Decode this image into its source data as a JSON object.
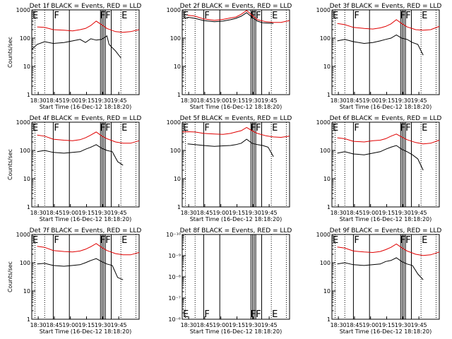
{
  "chart_data": [
    {
      "type": "line",
      "title": "Det 1f BLACK = Events, RED = LLD",
      "xlabel": "Start Time (16-Dec-12 18:18:20)",
      "ylabel": "Counts/sec",
      "yscale": "log",
      "ylim": [
        1,
        1000
      ],
      "ytick_labels": [
        "1",
        "10",
        "100",
        "1000"
      ],
      "xtick_labels": [
        "18:30",
        "18:45",
        "19:00",
        "19:15",
        "19:30",
        "19:45"
      ],
      "flags": [
        "E",
        "F",
        "FF",
        "E"
      ],
      "series": [
        {
          "name": "BLACK",
          "color": "#000000",
          "x": [
            0,
            0.05,
            0.12,
            0.2,
            0.3,
            0.38,
            0.45,
            0.5,
            0.55,
            0.6,
            0.65,
            0.7,
            0.72,
            0.78,
            0.83
          ],
          "y": [
            40,
            60,
            75,
            65,
            70,
            80,
            90,
            70,
            95,
            85,
            90,
            120,
            60,
            35,
            20
          ]
        },
        {
          "name": "RED",
          "color": "#e00000",
          "x": [
            0.05,
            0.12,
            0.2,
            0.3,
            0.38,
            0.45,
            0.5,
            0.55,
            0.6,
            0.65,
            0.7,
            0.78,
            0.85,
            0.92,
            1.0
          ],
          "y": [
            250,
            240,
            200,
            190,
            180,
            200,
            220,
            280,
            400,
            300,
            220,
            170,
            160,
            170,
            200
          ]
        }
      ]
    },
    {
      "type": "line",
      "title": "Det 2f BLACK = Events, RED = LLD",
      "xlabel": "Start Time (16-Dec-12 18:18:20)",
      "ylabel": "",
      "yscale": "log",
      "ylim": [
        1,
        1000
      ],
      "ytick_labels": [
        "1",
        "10",
        "100",
        "1000"
      ],
      "xtick_labels": [
        "18:30",
        "18:45",
        "19:00",
        "19:15",
        "19:30",
        "19:45"
      ],
      "flags": [
        "E",
        "F",
        "FF",
        "E"
      ],
      "series": [
        {
          "name": "BLACK",
          "color": "#000000",
          "x": [
            0.05,
            0.12,
            0.2,
            0.3,
            0.38,
            0.45,
            0.5,
            0.55,
            0.6,
            0.65,
            0.7,
            0.75,
            0.8,
            0.85
          ],
          "y": [
            550,
            500,
            420,
            380,
            400,
            450,
            500,
            600,
            800,
            550,
            400,
            350,
            340,
            330
          ]
        },
        {
          "name": "RED",
          "color": "#e00000",
          "x": [
            0.05,
            0.12,
            0.2,
            0.3,
            0.38,
            0.45,
            0.5,
            0.55,
            0.6,
            0.65,
            0.7,
            0.78,
            0.85,
            0.92,
            1.0
          ],
          "y": [
            650,
            600,
            480,
            430,
            460,
            520,
            560,
            700,
            950,
            650,
            450,
            380,
            360,
            360,
            420
          ]
        }
      ]
    },
    {
      "type": "line",
      "title": "Det 3f BLACK = Events, RED = LLD",
      "xlabel": "Start Time (16-Dec-12 18:18:20)",
      "ylabel": "",
      "yscale": "log",
      "ylim": [
        1,
        1000
      ],
      "ytick_labels": [
        "1",
        "10",
        "100",
        "1000"
      ],
      "xtick_labels": [
        "18:30",
        "18:45",
        "19:00",
        "19:15",
        "19:30",
        "19:45"
      ],
      "flags": [
        "E",
        "F",
        "FF",
        "E"
      ],
      "series": [
        {
          "name": "BLACK",
          "color": "#000000",
          "x": [
            0.05,
            0.12,
            0.2,
            0.3,
            0.38,
            0.45,
            0.5,
            0.55,
            0.6,
            0.65,
            0.7,
            0.75,
            0.8,
            0.85
          ],
          "y": [
            80,
            90,
            75,
            65,
            70,
            80,
            90,
            100,
            130,
            100,
            90,
            70,
            60,
            25
          ]
        },
        {
          "name": "RED",
          "color": "#e00000",
          "x": [
            0.05,
            0.12,
            0.2,
            0.3,
            0.38,
            0.45,
            0.5,
            0.55,
            0.6,
            0.65,
            0.7,
            0.78,
            0.85,
            0.92,
            1.0
          ],
          "y": [
            330,
            300,
            240,
            220,
            210,
            230,
            260,
            320,
            450,
            330,
            250,
            200,
            190,
            200,
            260
          ]
        }
      ]
    },
    {
      "type": "line",
      "title": "Det 4f BLACK = Events, RED = LLD",
      "xlabel": "Start Time (16-Dec-12 18:18:20)",
      "ylabel": "Counts/sec",
      "yscale": "log",
      "ylim": [
        1,
        1000
      ],
      "ytick_labels": [
        "1",
        "10",
        "100",
        "1000"
      ],
      "xtick_labels": [
        "18:30",
        "18:45",
        "19:00",
        "19:15",
        "19:30",
        "19:45"
      ],
      "flags": [
        "E",
        "F",
        "FF",
        "E"
      ],
      "series": [
        {
          "name": "BLACK",
          "color": "#000000",
          "x": [
            0.05,
            0.12,
            0.2,
            0.3,
            0.38,
            0.45,
            0.5,
            0.55,
            0.6,
            0.65,
            0.7,
            0.75,
            0.8,
            0.85
          ],
          "y": [
            90,
            100,
            85,
            80,
            85,
            90,
            110,
            130,
            160,
            120,
            100,
            90,
            40,
            30
          ]
        },
        {
          "name": "RED",
          "color": "#e00000",
          "x": [
            0.05,
            0.12,
            0.2,
            0.3,
            0.38,
            0.45,
            0.5,
            0.55,
            0.6,
            0.65,
            0.7,
            0.78,
            0.85,
            0.92,
            1.0
          ],
          "y": [
            350,
            320,
            250,
            230,
            220,
            240,
            280,
            350,
            450,
            330,
            260,
            200,
            180,
            180,
            220
          ]
        }
      ]
    },
    {
      "type": "line",
      "title": "Det 5f BLACK = Events, RED = LLD",
      "xlabel": "Start Time (16-Dec-12 18:18:20)",
      "ylabel": "",
      "yscale": "log",
      "ylim": [
        1,
        1000
      ],
      "ytick_labels": [
        "1",
        "10",
        "100",
        "1000"
      ],
      "xtick_labels": [
        "18:30",
        "18:45",
        "19:00",
        "19:15",
        "19:30",
        "19:45"
      ],
      "flags": [
        "E",
        "F",
        "FF",
        "E"
      ],
      "series": [
        {
          "name": "BLACK",
          "color": "#000000",
          "x": [
            0.05,
            0.12,
            0.2,
            0.3,
            0.38,
            0.45,
            0.5,
            0.55,
            0.6,
            0.65,
            0.7,
            0.75,
            0.8,
            0.85
          ],
          "y": [
            170,
            160,
            150,
            140,
            145,
            150,
            160,
            180,
            250,
            180,
            160,
            150,
            130,
            60
          ]
        },
        {
          "name": "RED",
          "color": "#e00000",
          "x": [
            0.0,
            0.05,
            0.12,
            0.2,
            0.3,
            0.38,
            0.45,
            0.5,
            0.55,
            0.6,
            0.65,
            0.7,
            0.78,
            0.85,
            0.92,
            1.0
          ],
          "y": [
            450,
            460,
            450,
            400,
            380,
            370,
            400,
            450,
            500,
            650,
            500,
            400,
            330,
            300,
            290,
            320
          ]
        }
      ]
    },
    {
      "type": "line",
      "title": "Det 6f BLACK = Events, RED = LLD",
      "xlabel": "Start Time (16-Dec-12 18:18:20)",
      "ylabel": "",
      "yscale": "log",
      "ylim": [
        1,
        1000
      ],
      "ytick_labels": [
        "1",
        "10",
        "100",
        "1000"
      ],
      "xtick_labels": [
        "18:30",
        "18:45",
        "19:00",
        "19:15",
        "19:30",
        "19:45"
      ],
      "flags": [
        "E",
        "F",
        "FF",
        "E"
      ],
      "series": [
        {
          "name": "BLACK",
          "color": "#000000",
          "x": [
            0.05,
            0.12,
            0.2,
            0.3,
            0.38,
            0.45,
            0.5,
            0.55,
            0.6,
            0.65,
            0.7,
            0.75,
            0.8,
            0.85
          ],
          "y": [
            80,
            90,
            75,
            70,
            80,
            90,
            110,
            130,
            150,
            110,
            90,
            70,
            50,
            20
          ]
        },
        {
          "name": "RED",
          "color": "#e00000",
          "x": [
            0.05,
            0.12,
            0.2,
            0.3,
            0.38,
            0.45,
            0.5,
            0.55,
            0.6,
            0.65,
            0.7,
            0.78,
            0.85,
            0.92,
            1.0
          ],
          "y": [
            280,
            260,
            210,
            200,
            220,
            230,
            260,
            320,
            380,
            300,
            240,
            190,
            170,
            180,
            230
          ]
        }
      ]
    },
    {
      "type": "line",
      "title": "Det 7f BLACK = Events, RED = LLD",
      "xlabel": "Start Time (16-Dec-12 18:18:20)",
      "ylabel": "Counts/sec",
      "yscale": "log",
      "ylim": [
        1,
        1000
      ],
      "ytick_labels": [
        "1",
        "10",
        "100",
        "1000"
      ],
      "xtick_labels": [
        "18:30",
        "18:45",
        "19:00",
        "19:15",
        "19:30",
        "19:45"
      ],
      "flags": [
        "E",
        "F",
        "FF",
        "E"
      ],
      "series": [
        {
          "name": "BLACK",
          "color": "#000000",
          "x": [
            0.05,
            0.12,
            0.2,
            0.3,
            0.38,
            0.45,
            0.5,
            0.55,
            0.6,
            0.65,
            0.7,
            0.75,
            0.8,
            0.85
          ],
          "y": [
            90,
            95,
            80,
            75,
            80,
            85,
            100,
            120,
            140,
            110,
            90,
            80,
            30,
            25
          ]
        },
        {
          "name": "RED",
          "color": "#e00000",
          "x": [
            0.05,
            0.12,
            0.2,
            0.3,
            0.38,
            0.45,
            0.5,
            0.55,
            0.6,
            0.65,
            0.7,
            0.78,
            0.85,
            0.92,
            1.0
          ],
          "y": [
            380,
            350,
            270,
            250,
            240,
            260,
            300,
            370,
            480,
            350,
            270,
            210,
            190,
            190,
            230
          ]
        }
      ]
    },
    {
      "type": "line",
      "title": "Det 8f BLACK = Events, RED = LLD",
      "xlabel": "Start Time (16-Dec-12 18:18:20)",
      "ylabel": "",
      "yscale": "log",
      "ylim": [
        1e-06,
        1e-10
      ],
      "ytick_labels": [
        "10⁻⁶",
        "10⁻⁷",
        "10⁻⁸",
        "10⁻⁹",
        "10⁻¹⁰"
      ],
      "xtick_labels": [
        "18:30",
        "18:45",
        "19:00",
        "19:15",
        "19:30",
        "19:45"
      ],
      "flags": [
        "E",
        "F",
        "FF",
        "E"
      ],
      "series": []
    },
    {
      "type": "line",
      "title": "Det 9f BLACK = Events, RED = LLD",
      "xlabel": "Start Time (16-Dec-12 18:18:20)",
      "ylabel": "",
      "yscale": "log",
      "ylim": [
        1,
        1000
      ],
      "ytick_labels": [
        "1",
        "10",
        "100",
        "1000"
      ],
      "xtick_labels": [
        "18:30",
        "18:45",
        "19:00",
        "19:15",
        "19:30",
        "19:45"
      ],
      "flags": [
        "E",
        "F",
        "FF",
        "E"
      ],
      "series": [
        {
          "name": "BLACK",
          "color": "#000000",
          "x": [
            0.05,
            0.12,
            0.2,
            0.3,
            0.38,
            0.45,
            0.5,
            0.55,
            0.6,
            0.65,
            0.7,
            0.75,
            0.8,
            0.85
          ],
          "y": [
            90,
            100,
            85,
            80,
            85,
            90,
            110,
            120,
            150,
            110,
            90,
            80,
            40,
            25
          ]
        },
        {
          "name": "RED",
          "color": "#e00000",
          "x": [
            0.05,
            0.12,
            0.2,
            0.3,
            0.38,
            0.45,
            0.5,
            0.55,
            0.6,
            0.65,
            0.7,
            0.78,
            0.85,
            0.92,
            1.0
          ],
          "y": [
            360,
            330,
            260,
            240,
            230,
            250,
            290,
            350,
            460,
            340,
            260,
            200,
            180,
            190,
            240
          ]
        }
      ]
    }
  ]
}
